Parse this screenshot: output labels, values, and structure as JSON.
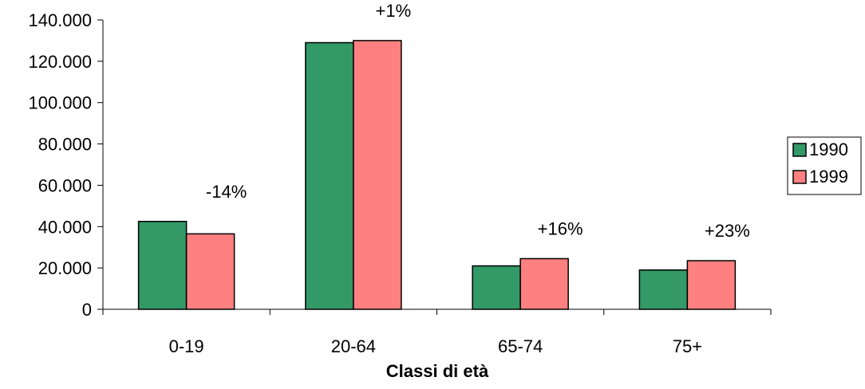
{
  "chart_data": {
    "type": "bar",
    "categories": [
      "0-19",
      "20-64",
      "65-74",
      "75+"
    ],
    "series": [
      {
        "name": "1990",
        "color": "#339966",
        "values": [
          42500,
          129000,
          21000,
          19000
        ]
      },
      {
        "name": "1999",
        "color": "#FF8080",
        "values": [
          36500,
          130000,
          24500,
          23500
        ]
      }
    ],
    "annotations": [
      "-14%",
      "+1%",
      "+16%",
      "+23%"
    ],
    "xlabel": "Classi di età",
    "ylabel": "",
    "ylim": [
      0,
      140000
    ],
    "yticks": [
      0,
      20000,
      40000,
      60000,
      80000,
      100000,
      120000,
      140000
    ],
    "ytick_labels": [
      "0",
      "20.000",
      "40.000",
      "60.000",
      "80.000",
      "100.000",
      "120.000",
      "140.000"
    ],
    "grid": false,
    "legend": "right"
  }
}
